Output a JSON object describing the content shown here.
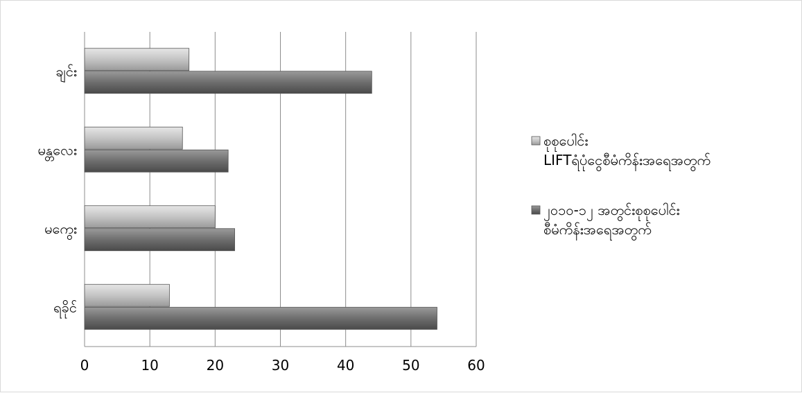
{
  "chart_data": {
    "type": "bar",
    "orientation": "horizontal",
    "title": "",
    "xlabel": "",
    "ylabel": "",
    "xlim": [
      0,
      60
    ],
    "x_ticks": [
      0,
      10,
      20,
      30,
      40,
      50,
      60
    ],
    "grid": true,
    "legend_position": "right",
    "categories": [
      "ချင်း",
      "မန္တလေး",
      "မကွေး",
      "ရခိုင်"
    ],
    "series": [
      {
        "name": "စုစုပေါင်း LIFTရံပုံငွေစီမံကိန်းအရေအတွက်",
        "name_lines": [
          "စုစုပေါင်း",
          "LIFTရံပုံငွေစီမံကိန်းအရေအတွက်"
        ],
        "color": "#b4b4b4",
        "values": [
          16,
          15,
          20,
          13
        ]
      },
      {
        "name": "၂၀၁၀-၁၂ အတွင်းစုစုပေါင်း စီမံကိန်းအရေအတွက်",
        "name_lines": [
          "၂၀၁၀-၁၂ အတွင်းစုစုပေါင်း",
          "စီမံကိန်းအရေအတွက်"
        ],
        "color": "#6e6e6e",
        "values": [
          44,
          22,
          23,
          54
        ]
      }
    ]
  }
}
